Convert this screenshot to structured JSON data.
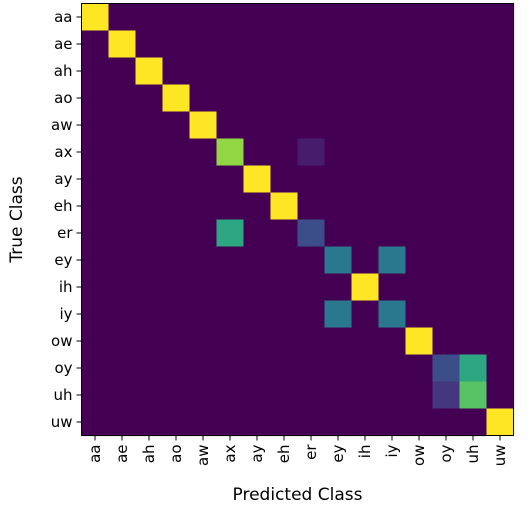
{
  "chart_data": {
    "type": "heatmap",
    "title": "",
    "xlabel": "Predicted Class",
    "ylabel": "True Class",
    "row_labels": [
      "aa",
      "ae",
      "ah",
      "ao",
      "aw",
      "ax",
      "ay",
      "eh",
      "er",
      "ey",
      "ih",
      "iy",
      "ow",
      "oy",
      "uh",
      "uw"
    ],
    "col_labels": [
      "aa",
      "ae",
      "ah",
      "ao",
      "aw",
      "ax",
      "ay",
      "eh",
      "er",
      "ey",
      "ih",
      "iy",
      "ow",
      "oy",
      "uh",
      "uw"
    ],
    "value_range": [
      0,
      1
    ],
    "colormap": "viridis",
    "values": [
      [
        1,
        0,
        0,
        0,
        0,
        0,
        0,
        0,
        0,
        0,
        0,
        0,
        0,
        0,
        0,
        0
      ],
      [
        0,
        1,
        0,
        0,
        0,
        0,
        0,
        0,
        0,
        0,
        0,
        0,
        0,
        0,
        0,
        0
      ],
      [
        0,
        0,
        1,
        0,
        0,
        0,
        0,
        0,
        0,
        0,
        0,
        0,
        0,
        0,
        0,
        0
      ],
      [
        0,
        0,
        0,
        1,
        0,
        0,
        0,
        0,
        0,
        0,
        0,
        0,
        0,
        0,
        0,
        0
      ],
      [
        0,
        0,
        0,
        0,
        1,
        0,
        0,
        0,
        0,
        0,
        0,
        0,
        0,
        0,
        0,
        0
      ],
      [
        0,
        0,
        0,
        0,
        0,
        0.88,
        0,
        0,
        0.1,
        0,
        0,
        0,
        0,
        0,
        0,
        0
      ],
      [
        0,
        0,
        0,
        0,
        0,
        0,
        1,
        0,
        0,
        0,
        0,
        0,
        0,
        0,
        0,
        0
      ],
      [
        0,
        0,
        0,
        0,
        0,
        0,
        0,
        1,
        0,
        0,
        0,
        0,
        0,
        0,
        0,
        0
      ],
      [
        0,
        0,
        0,
        0,
        0,
        0.7,
        0,
        0,
        0.3,
        0,
        0,
        0,
        0,
        0,
        0,
        0
      ],
      [
        0,
        0,
        0,
        0,
        0,
        0,
        0,
        0,
        0,
        0.5,
        0,
        0.5,
        0,
        0,
        0,
        0
      ],
      [
        0,
        0,
        0,
        0,
        0,
        0,
        0,
        0,
        0,
        0,
        1,
        0,
        0,
        0,
        0,
        0
      ],
      [
        0,
        0,
        0,
        0,
        0,
        0,
        0,
        0,
        0,
        0.5,
        0,
        0.5,
        0,
        0,
        0,
        0
      ],
      [
        0,
        0,
        0,
        0,
        0,
        0,
        0,
        0,
        0,
        0,
        0,
        0,
        1,
        0,
        0,
        0
      ],
      [
        0,
        0,
        0,
        0,
        0,
        0,
        0,
        0,
        0,
        0,
        0,
        0,
        0,
        0.3,
        0.7,
        0
      ],
      [
        0,
        0,
        0,
        0,
        0,
        0,
        0,
        0,
        0,
        0,
        0,
        0,
        0,
        0.2,
        0.8,
        0
      ],
      [
        0,
        0,
        0,
        0,
        0,
        0,
        0,
        0,
        0,
        0,
        0,
        0,
        0,
        0,
        0,
        1
      ]
    ]
  }
}
